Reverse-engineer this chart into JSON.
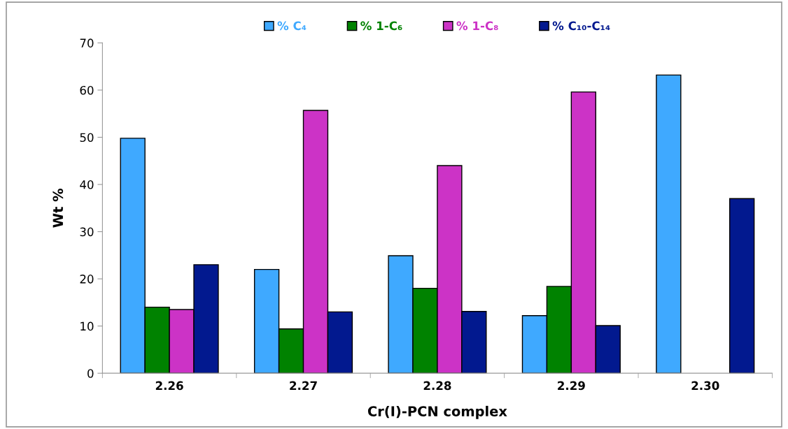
{
  "chart_data": {
    "type": "bar",
    "xlabel": "Cr(I)-PCN complex",
    "ylabel": "Wt %",
    "categories": [
      "2.26",
      "2.27",
      "2.28",
      "2.29",
      "2.30"
    ],
    "series": [
      {
        "name": "% C₄",
        "color": "#3fa9ff",
        "values": [
          49.8,
          22.0,
          24.9,
          12.2,
          63.2
        ]
      },
      {
        "name": "% 1-C₆",
        "color": "#008200",
        "values": [
          14.0,
          9.4,
          18.0,
          18.4,
          null
        ]
      },
      {
        "name": "% 1-C₈",
        "color": "#cc33c6",
        "values": [
          13.5,
          55.7,
          44.0,
          59.6,
          null
        ]
      },
      {
        "name": "% C₁₀-C₁₄",
        "color": "#02198f",
        "values": [
          23.0,
          13.0,
          13.1,
          10.1,
          37.0
        ]
      }
    ],
    "ylim": [
      0,
      70
    ],
    "yticks": [
      0,
      10,
      20,
      30,
      40,
      50,
      60,
      70
    ],
    "grid": false,
    "legend": "top"
  }
}
